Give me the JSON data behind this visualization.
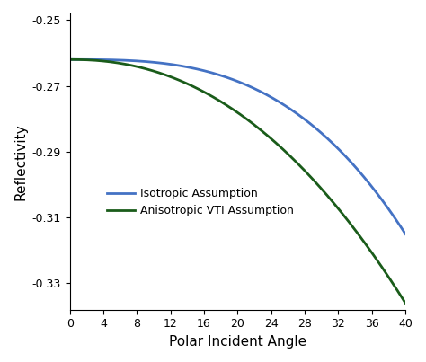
{
  "title": "",
  "xlabel": "Polar Incident Angle",
  "ylabel": "Reflectivity",
  "xlim": [
    0,
    40
  ],
  "ylim": [
    -0.338,
    -0.248
  ],
  "xticks": [
    0,
    4,
    8,
    12,
    16,
    20,
    24,
    28,
    32,
    36,
    40
  ],
  "yticks": [
    -0.25,
    -0.27,
    -0.29,
    -0.31,
    -0.33
  ],
  "ytick_labels": [
    "-0.25",
    "-0.27",
    "-0.29",
    "-0.31",
    "-0.33"
  ],
  "isotropic_color": "#4472C4",
  "anisotropic_color": "#1A5C1A",
  "legend_entries": [
    "Isotropic Assumption",
    "Anisotropic VTI Assumption"
  ],
  "background_color": "#ffffff",
  "linewidth": 2.0
}
